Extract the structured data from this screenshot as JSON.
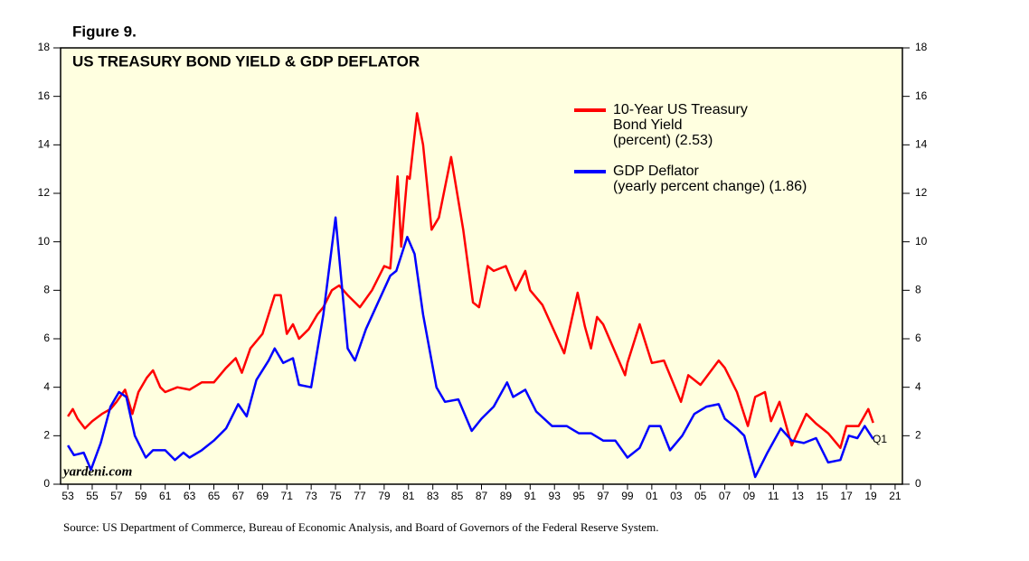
{
  "chart_data": {
    "type": "line",
    "figure_label": "Figure 9.",
    "title": "US TREASURY BOND YIELD & GDP DEFLATOR",
    "annotations": [
      "yardeni.com",
      "Q1"
    ],
    "source": "Source: US Department of Commerce, Bureau of Economic Analysis, and Board of Governors of the Federal Reserve System.",
    "xlim": [
      1952.4,
      2021.6
    ],
    "ylim": [
      0,
      18
    ],
    "yticks": [
      0,
      2,
      4,
      6,
      8,
      10,
      12,
      14,
      16,
      18
    ],
    "xticks": [
      {
        "value": 1953,
        "label": "53"
      },
      {
        "value": 1955,
        "label": "55"
      },
      {
        "value": 1957,
        "label": "57"
      },
      {
        "value": 1959,
        "label": "59"
      },
      {
        "value": 1961,
        "label": "61"
      },
      {
        "value": 1963,
        "label": "63"
      },
      {
        "value": 1965,
        "label": "65"
      },
      {
        "value": 1967,
        "label": "67"
      },
      {
        "value": 1969,
        "label": "69"
      },
      {
        "value": 1971,
        "label": "71"
      },
      {
        "value": 1973,
        "label": "73"
      },
      {
        "value": 1975,
        "label": "75"
      },
      {
        "value": 1977,
        "label": "77"
      },
      {
        "value": 1979,
        "label": "79"
      },
      {
        "value": 1981,
        "label": "81"
      },
      {
        "value": 1983,
        "label": "83"
      },
      {
        "value": 1985,
        "label": "85"
      },
      {
        "value": 1987,
        "label": "87"
      },
      {
        "value": 1989,
        "label": "89"
      },
      {
        "value": 1991,
        "label": "91"
      },
      {
        "value": 1993,
        "label": "93"
      },
      {
        "value": 1995,
        "label": "95"
      },
      {
        "value": 1997,
        "label": "97"
      },
      {
        "value": 1999,
        "label": "99"
      },
      {
        "value": 2001,
        "label": "01"
      },
      {
        "value": 2003,
        "label": "03"
      },
      {
        "value": 2005,
        "label": "05"
      },
      {
        "value": 2007,
        "label": "07"
      },
      {
        "value": 2009,
        "label": "09"
      },
      {
        "value": 2011,
        "label": "11"
      },
      {
        "value": 2013,
        "label": "13"
      },
      {
        "value": 2015,
        "label": "15"
      },
      {
        "value": 2017,
        "label": "17"
      },
      {
        "value": 2019,
        "label": "19"
      },
      {
        "value": 2021,
        "label": "21"
      }
    ],
    "series": [
      {
        "name": "10-Year US Treasury\nBond Yield\n(percent) (2.53)",
        "color": "#ff0000",
        "x": [
          1953.0,
          1953.4,
          1953.8,
          1954.4,
          1955.0,
          1955.8,
          1956.5,
          1957.0,
          1957.7,
          1958.3,
          1958.8,
          1959.5,
          1960.0,
          1960.6,
          1961.0,
          1962.0,
          1963.0,
          1964.0,
          1965.0,
          1966.0,
          1966.8,
          1967.3,
          1968.0,
          1969.0,
          1970.0,
          1970.5,
          1971.0,
          1971.5,
          1972.0,
          1972.8,
          1973.5,
          1974.0,
          1974.7,
          1975.3,
          1976.0,
          1977.0,
          1978.0,
          1979.0,
          1979.5,
          1980.1,
          1980.4,
          1980.9,
          1981.1,
          1981.7,
          1982.2,
          1982.9,
          1983.5,
          1984.5,
          1985.5,
          1986.3,
          1986.8,
          1987.5,
          1988.0,
          1989.0,
          1989.8,
          1990.6,
          1991.0,
          1992.0,
          1993.8,
          1994.9,
          1995.5,
          1996.0,
          1996.5,
          1997.0,
          1998.8,
          1999.0,
          2000.0,
          2001.0,
          2002.0,
          2003.4,
          2004.0,
          2005.0,
          2006.5,
          2007.0,
          2008.0,
          2008.9,
          2009.5,
          2010.3,
          2010.8,
          2011.5,
          2012.5,
          2013.7,
          2014.5,
          2015.5,
          2016.5,
          2017.0,
          2018.0,
          2018.8,
          2019.2
        ],
        "values": [
          2.8,
          3.1,
          2.7,
          2.3,
          2.6,
          2.9,
          3.1,
          3.4,
          3.9,
          2.9,
          3.8,
          4.4,
          4.7,
          4.0,
          3.8,
          4.0,
          3.9,
          4.2,
          4.2,
          4.8,
          5.2,
          4.6,
          5.6,
          6.2,
          7.8,
          7.8,
          6.2,
          6.6,
          6.0,
          6.4,
          7.0,
          7.3,
          8.0,
          8.2,
          7.8,
          7.3,
          8.0,
          9.0,
          8.9,
          12.7,
          9.8,
          12.7,
          12.6,
          15.3,
          14.0,
          10.5,
          11.0,
          13.5,
          10.5,
          7.5,
          7.3,
          9.0,
          8.8,
          9.0,
          8.0,
          8.8,
          8.0,
          7.4,
          5.4,
          7.9,
          6.5,
          5.6,
          6.9,
          6.6,
          4.5,
          5.0,
          6.6,
          5.0,
          5.1,
          3.4,
          4.5,
          4.1,
          5.1,
          4.8,
          3.8,
          2.4,
          3.6,
          3.8,
          2.6,
          3.4,
          1.6,
          2.9,
          2.5,
          2.1,
          1.5,
          2.4,
          2.4,
          3.1,
          2.53
        ]
      },
      {
        "name": "GDP Deflator\n(yearly percent change) (1.86)",
        "color": "#0000ff",
        "x": [
          1953.0,
          1953.5,
          1954.3,
          1954.9,
          1955.7,
          1956.5,
          1957.2,
          1957.8,
          1958.5,
          1959.4,
          1960.0,
          1961.0,
          1961.8,
          1962.5,
          1963.0,
          1964.0,
          1965.0,
          1966.0,
          1967.0,
          1967.7,
          1968.5,
          1969.5,
          1970.0,
          1970.7,
          1971.5,
          1972.0,
          1973.0,
          1974.0,
          1975.0,
          1976.0,
          1976.6,
          1977.5,
          1978.5,
          1979.5,
          1980.0,
          1980.9,
          1981.5,
          1982.2,
          1983.3,
          1984.0,
          1985.1,
          1986.2,
          1987.0,
          1988.0,
          1989.1,
          1989.6,
          1990.6,
          1991.5,
          1992.8,
          1994.0,
          1995.0,
          1996.0,
          1997.0,
          1998.0,
          1999.0,
          2000.0,
          2000.8,
          2001.7,
          2002.5,
          2003.5,
          2004.5,
          2005.5,
          2006.5,
          2007.0,
          2008.0,
          2008.6,
          2009.5,
          2010.5,
          2011.6,
          2012.5,
          2013.5,
          2014.5,
          2015.5,
          2016.5,
          2017.2,
          2017.9,
          2018.5,
          2019.2
        ],
        "values": [
          1.6,
          1.2,
          1.3,
          0.6,
          1.7,
          3.2,
          3.8,
          3.6,
          2.0,
          1.1,
          1.4,
          1.4,
          1.0,
          1.3,
          1.1,
          1.4,
          1.8,
          2.3,
          3.3,
          2.8,
          4.3,
          5.1,
          5.6,
          5.0,
          5.2,
          4.1,
          4.0,
          7.0,
          11.0,
          5.6,
          5.1,
          6.4,
          7.5,
          8.6,
          8.8,
          10.2,
          9.5,
          7.0,
          4.0,
          3.4,
          3.5,
          2.2,
          2.7,
          3.2,
          4.2,
          3.6,
          3.9,
          3.0,
          2.4,
          2.4,
          2.1,
          2.1,
          1.8,
          1.8,
          1.1,
          1.5,
          2.4,
          2.4,
          1.4,
          2.0,
          2.9,
          3.2,
          3.3,
          2.7,
          2.3,
          2.0,
          0.3,
          1.3,
          2.3,
          1.8,
          1.7,
          1.9,
          0.9,
          1.0,
          2.0,
          1.9,
          2.4,
          1.86
        ]
      }
    ]
  }
}
